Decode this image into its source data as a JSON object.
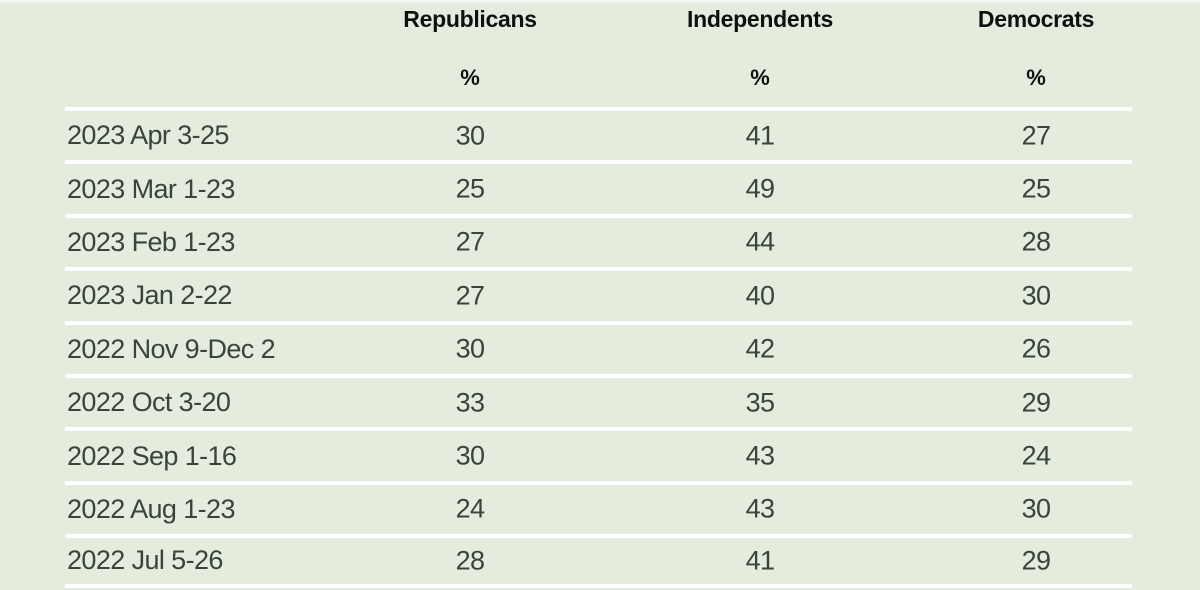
{
  "page": {
    "background_color": "#e3ecdd",
    "separator_color": "#ffffff",
    "header_text_color": "#101010",
    "body_text_color": "#3a433c"
  },
  "table": {
    "columns": [
      {
        "label": "Republicans",
        "unit": "%"
      },
      {
        "label": "Independents",
        "unit": "%"
      },
      {
        "label": "Democrats",
        "unit": "%"
      }
    ],
    "rows": [
      {
        "date": "2023 Apr 3-25",
        "republicans": "30",
        "independents": "41",
        "democrats": "27"
      },
      {
        "date": "2023 Mar 1-23",
        "republicans": "25",
        "independents": "49",
        "democrats": "25"
      },
      {
        "date": "2023 Feb 1-23",
        "republicans": "27",
        "independents": "44",
        "democrats": "28"
      },
      {
        "date": "2023 Jan 2-22",
        "republicans": "27",
        "independents": "40",
        "democrats": "30"
      },
      {
        "date": "2022 Nov 9-Dec 2",
        "republicans": "30",
        "independents": "42",
        "democrats": "26"
      },
      {
        "date": "2022 Oct 3-20",
        "republicans": "33",
        "independents": "35",
        "democrats": "29"
      },
      {
        "date": "2022 Sep 1-16",
        "republicans": "30",
        "independents": "43",
        "democrats": "24"
      },
      {
        "date": "2022 Aug 1-23",
        "republicans": "24",
        "independents": "43",
        "democrats": "30"
      },
      {
        "date": "2022 Jul 5-26",
        "republicans": "28",
        "independents": "41",
        "democrats": "29"
      }
    ]
  },
  "chart_data": {
    "type": "table",
    "unit": "%",
    "categories": [
      "2023 Apr 3-25",
      "2023 Mar 1-23",
      "2023 Feb 1-23",
      "2023 Jan 2-22",
      "2022 Nov 9-Dec 2",
      "2022 Oct 3-20",
      "2022 Sep 1-16",
      "2022 Aug 1-23",
      "2022 Jul 5-26"
    ],
    "series": [
      {
        "name": "Republicans",
        "values": [
          30,
          25,
          27,
          27,
          30,
          33,
          30,
          24,
          28
        ]
      },
      {
        "name": "Independents",
        "values": [
          41,
          49,
          44,
          40,
          42,
          35,
          43,
          43,
          41
        ]
      },
      {
        "name": "Democrats",
        "values": [
          27,
          25,
          28,
          30,
          26,
          29,
          24,
          30,
          29
        ]
      }
    ]
  }
}
